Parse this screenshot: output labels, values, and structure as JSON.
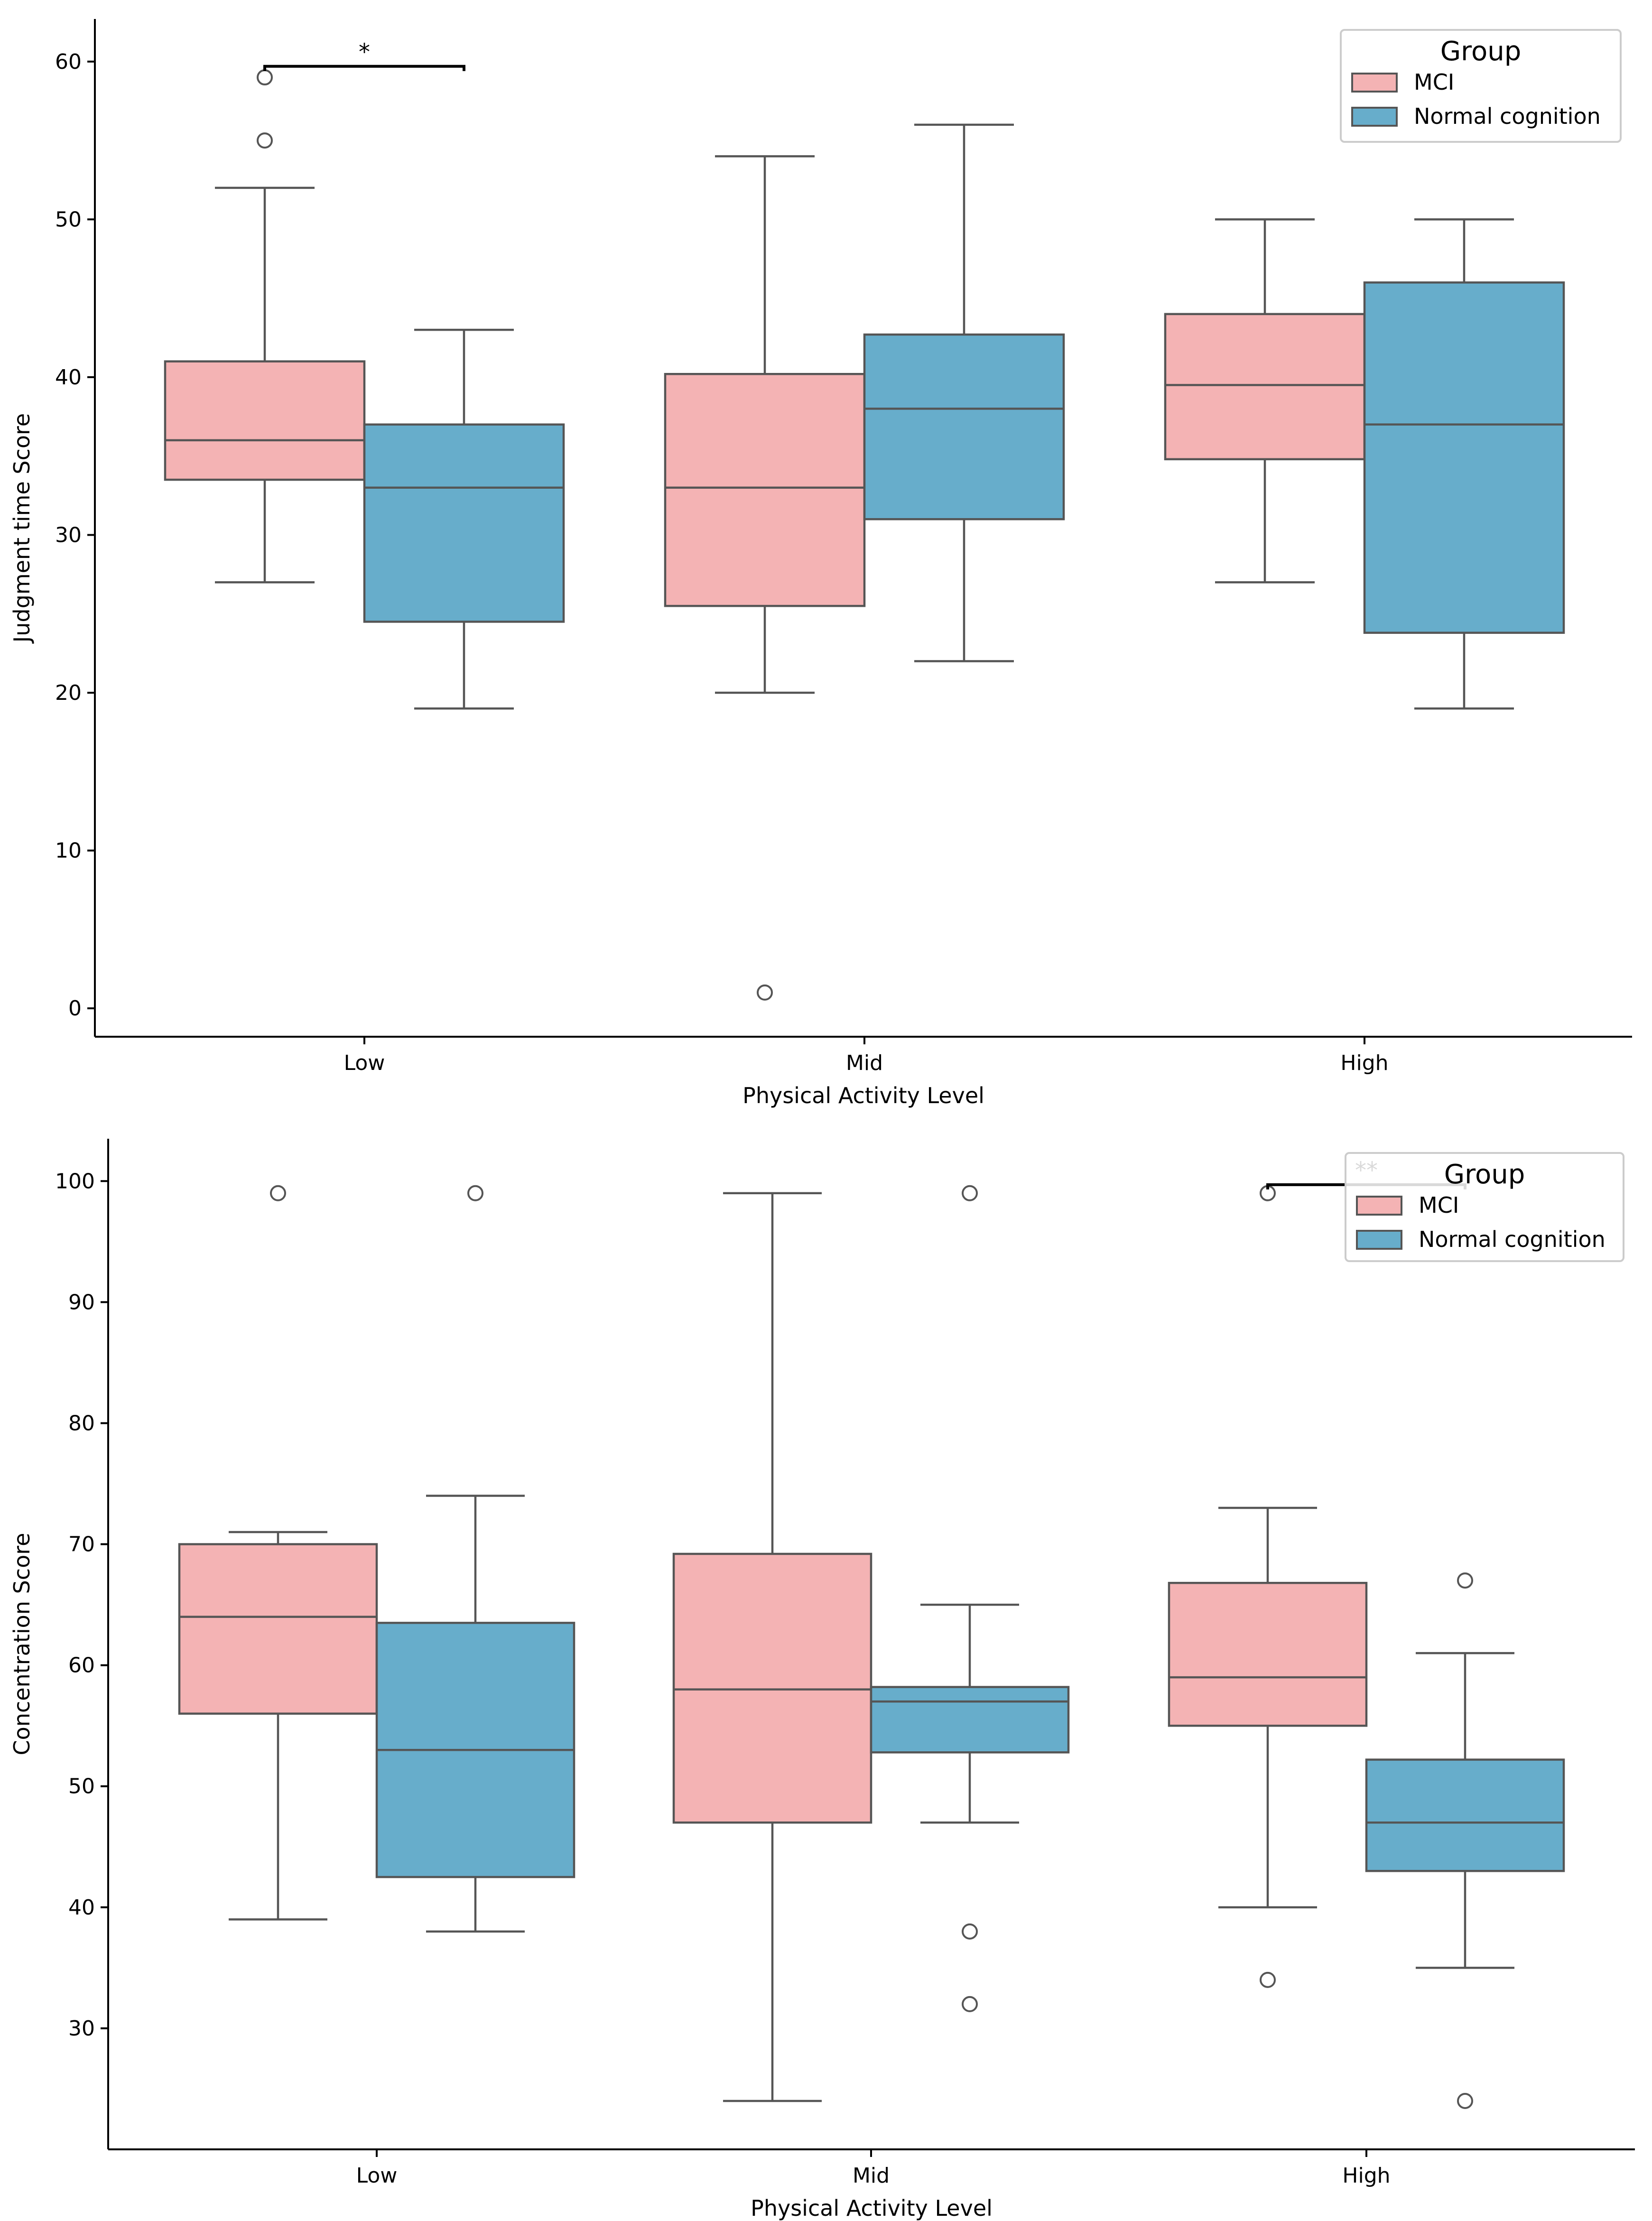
{
  "colors": {
    "mci": "#F4B3B4",
    "normal": "#67ADCB",
    "stroke": "#555555",
    "axis": "#000000"
  },
  "legend": {
    "title": "Group",
    "items": [
      "MCI",
      "Normal cognition"
    ]
  },
  "chart_data": [
    {
      "type": "box",
      "title": "",
      "xlabel": "Physical Activity Level",
      "ylabel": "Judgment time Score",
      "categories": [
        "Low",
        "Mid",
        "High"
      ],
      "ylim": [
        -1.8,
        62.7
      ],
      "yticks": [
        0,
        10,
        20,
        30,
        40,
        50,
        60
      ],
      "legend_position": "top-right",
      "series": [
        {
          "name": "MCI",
          "boxes": [
            {
              "whislo": 27,
              "q1": 33.5,
              "med": 36,
              "q3": 41,
              "whishi": 52,
              "fliers": [
                55,
                59
              ]
            },
            {
              "whislo": 20,
              "q1": 25.5,
              "med": 33,
              "q3": 40.2,
              "whishi": 54,
              "fliers": [
                1
              ]
            },
            {
              "whislo": 27,
              "q1": 34.8,
              "med": 39.5,
              "q3": 44,
              "whishi": 50,
              "fliers": []
            }
          ]
        },
        {
          "name": "Normal cognition",
          "boxes": [
            {
              "whislo": 19,
              "q1": 24.5,
              "med": 33,
              "q3": 37,
              "whishi": 43,
              "fliers": []
            },
            {
              "whislo": 22,
              "q1": 31,
              "med": 38,
              "q3": 42.7,
              "whishi": 56,
              "fliers": []
            },
            {
              "whislo": 19,
              "q1": 23.8,
              "med": 37,
              "q3": 46,
              "whishi": 50,
              "fliers": []
            }
          ]
        }
      ],
      "annotations": [
        {
          "category": 0,
          "label": "*",
          "y": 59.7
        }
      ]
    },
    {
      "type": "box",
      "title": "",
      "xlabel": "Physical Activity Level",
      "ylabel": "Concentration Score",
      "categories": [
        "Low",
        "Mid",
        "High"
      ],
      "ylim": [
        20,
        103.5
      ],
      "yticks": [
        30,
        40,
        50,
        60,
        70,
        80,
        90,
        100
      ],
      "legend_position": "top-right",
      "series": [
        {
          "name": "MCI",
          "boxes": [
            {
              "whislo": 39,
              "q1": 56,
              "med": 64,
              "q3": 70,
              "whishi": 71,
              "fliers": [
                99
              ]
            },
            {
              "whislo": 24,
              "q1": 47,
              "med": 58,
              "q3": 69.2,
              "whishi": 99,
              "fliers": []
            },
            {
              "whislo": 40,
              "q1": 55,
              "med": 59,
              "q3": 66.8,
              "whishi": 73,
              "fliers": [
                34,
                99
              ]
            }
          ]
        },
        {
          "name": "Normal cognition",
          "boxes": [
            {
              "whislo": 38,
              "q1": 42.5,
              "med": 53,
              "q3": 63.5,
              "whishi": 74,
              "fliers": [
                99
              ]
            },
            {
              "whislo": 47,
              "q1": 52.8,
              "med": 57,
              "q3": 58.2,
              "whishi": 65,
              "fliers": [
                32,
                38,
                99
              ]
            },
            {
              "whislo": 35,
              "q1": 43,
              "med": 47,
              "q3": 52.2,
              "whishi": 61,
              "fliers": [
                24,
                67
              ]
            }
          ]
        }
      ],
      "annotations": [
        {
          "category": 2,
          "label": "**",
          "y": 99.7
        }
      ]
    }
  ]
}
